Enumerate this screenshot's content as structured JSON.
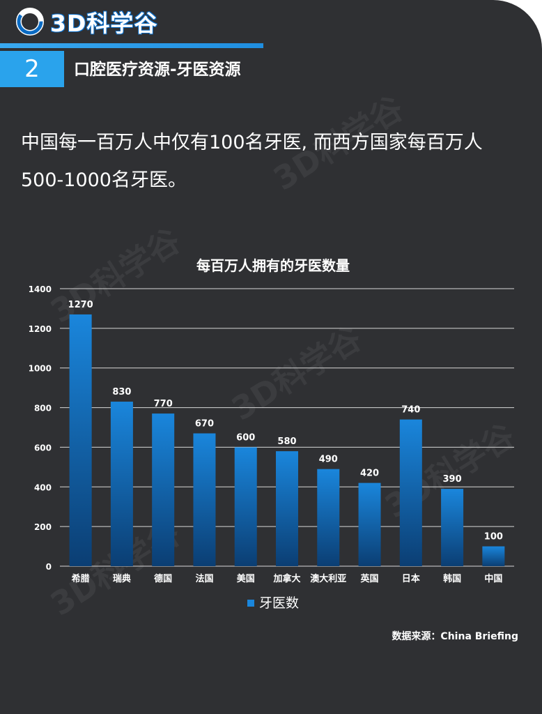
{
  "header": {
    "logo_text": "3D科学谷",
    "section_number": "2",
    "section_title": "口腔医疗资源-牙医资源"
  },
  "intro": {
    "line1": "中国每一百万人中仅有100名牙医, 而西方国家每百万人",
    "line2": "500-1000名牙医。"
  },
  "watermark_text": "3D科学谷",
  "colors": {
    "background": "#2f3033",
    "accent": "#2aa3ec",
    "bar_top": "#1a86dc",
    "bar_bottom": "#0b3e73"
  },
  "chart_data": {
    "type": "bar",
    "title": "每百万人拥有的牙医数量",
    "categories": [
      "希腊",
      "瑞典",
      "德国",
      "法国",
      "美国",
      "加拿大",
      "澳大利亚",
      "英国",
      "日本",
      "韩国",
      "中国"
    ],
    "series": [
      {
        "name": "牙医数",
        "values": [
          1270,
          830,
          770,
          670,
          600,
          580,
          490,
          420,
          740,
          390,
          100
        ]
      }
    ],
    "ylim": [
      0,
      1400
    ],
    "yticks": [
      0,
      200,
      400,
      600,
      800,
      1000,
      1200,
      1400
    ],
    "grid": true,
    "legend_position": "bottom",
    "data_labels": true
  },
  "source": "数据来源：China Briefing"
}
